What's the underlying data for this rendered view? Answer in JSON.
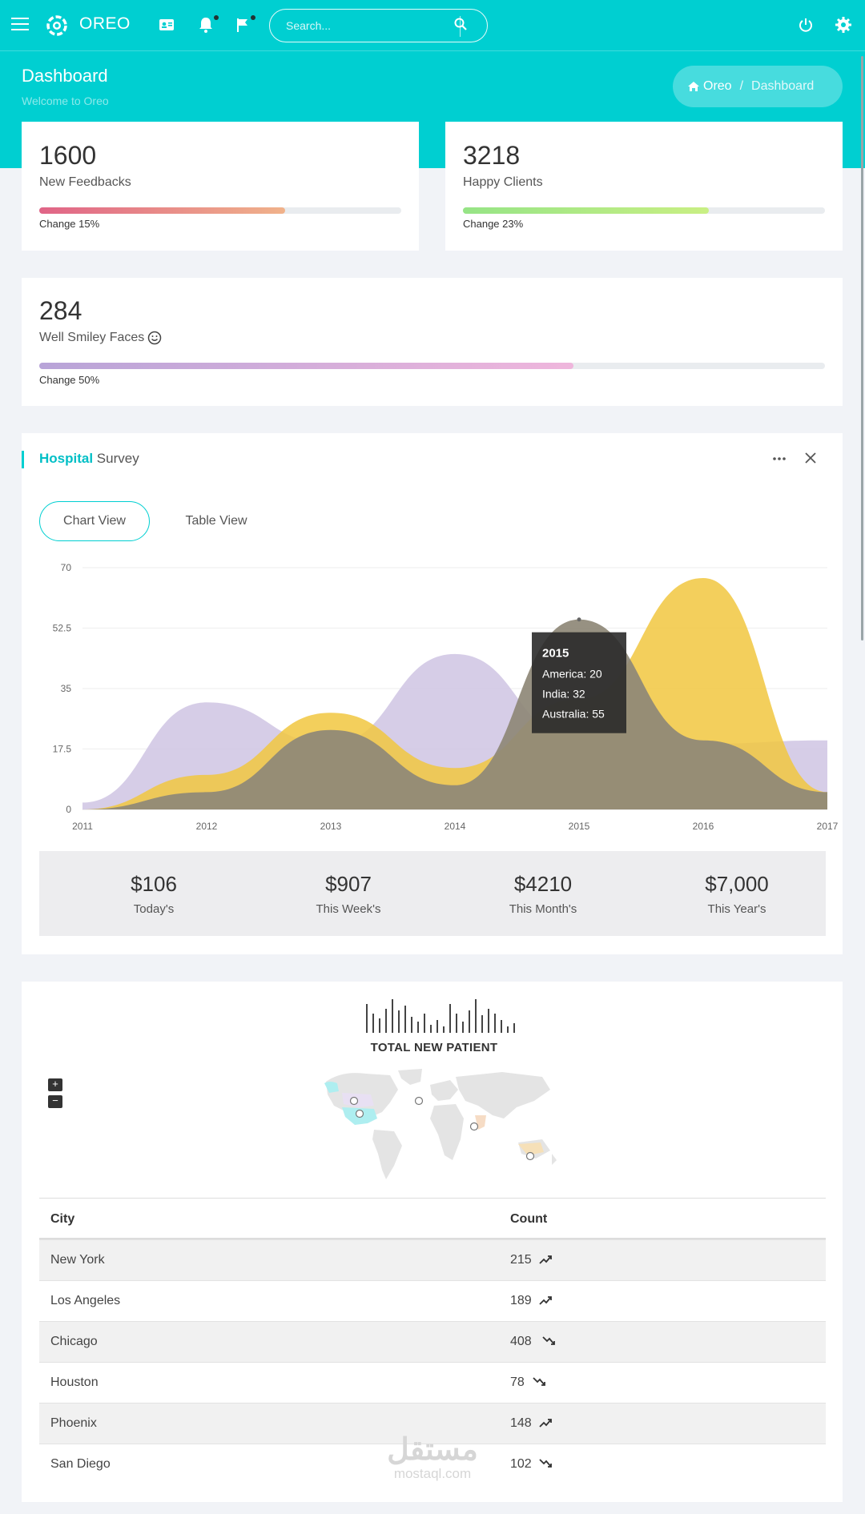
{
  "topbar": {
    "brand": "OREO",
    "search_placeholder": "Search..."
  },
  "header": {
    "title": "Dashboard",
    "subtitle": "Welcome to Oreo",
    "breadcrumb_home": "Oreo",
    "breadcrumb_sep": "/",
    "breadcrumb_current": "Dashboard"
  },
  "stats": [
    {
      "value": "1600",
      "label": "New Feedbacks",
      "change": "Change 15%",
      "progress": 0.68,
      "colors": [
        "#e06487",
        "#f0b28a"
      ]
    },
    {
      "value": "3218",
      "label": "Happy Clients",
      "change": "Change 23%",
      "progress": 0.68,
      "colors": [
        "#96e486",
        "#c9ef84"
      ]
    },
    {
      "value": "284",
      "label": "Well Smiley Faces",
      "change": "Change 50%",
      "progress": 0.68,
      "colors": [
        "#b8a4d8",
        "#efb6dc"
      ]
    }
  ],
  "survey": {
    "title_bold": "Hospital",
    "title_rest": "Survey",
    "tabs": [
      "Chart View",
      "Table View"
    ],
    "totals": [
      {
        "value": "$106",
        "label": "Today's"
      },
      {
        "value": "$907",
        "label": "This Week's"
      },
      {
        "value": "$4210",
        "label": "This Month's"
      },
      {
        "value": "$7,000",
        "label": "This Year's"
      }
    ]
  },
  "chart_data": {
    "type": "area",
    "x": [
      2011,
      2012,
      2013,
      2014,
      2015,
      2016,
      2017
    ],
    "yticks": [
      0,
      17.5,
      35,
      52.5,
      70
    ],
    "ylim": [
      0,
      70
    ],
    "series": [
      {
        "name": "America",
        "color": "#cfc4e3",
        "values": [
          2,
          31,
          19,
          45,
          20,
          19,
          20
        ]
      },
      {
        "name": "India",
        "color": "#f1c740",
        "values": [
          0,
          10,
          28,
          12,
          32,
          67,
          5
        ]
      },
      {
        "name": "Australia",
        "color": "#8e8877",
        "values": [
          0,
          5,
          23,
          7,
          55,
          20,
          5
        ]
      }
    ],
    "tooltip": {
      "title": "2015",
      "lines": [
        "America: 20",
        "India: 32",
        "Australia: 55"
      ]
    }
  },
  "patients": {
    "title": "TOTAL NEW PATIENT",
    "zoom_in": "+",
    "zoom_out": "−",
    "columns": [
      "City",
      "Count"
    ],
    "rows": [
      {
        "city": "New York",
        "count": "215",
        "trend": "up"
      },
      {
        "city": "Los Angeles",
        "count": "189",
        "trend": "up"
      },
      {
        "city": "Chicago",
        "count": "408",
        "trend": "down"
      },
      {
        "city": "Houston",
        "count": "78",
        "trend": "down"
      },
      {
        "city": "Phoenix",
        "count": "148",
        "trend": "up"
      },
      {
        "city": "San Diego",
        "count": "102",
        "trend": "down"
      }
    ]
  },
  "watermark": {
    "arabic": "مستقل",
    "latin": "mostaql.com"
  }
}
